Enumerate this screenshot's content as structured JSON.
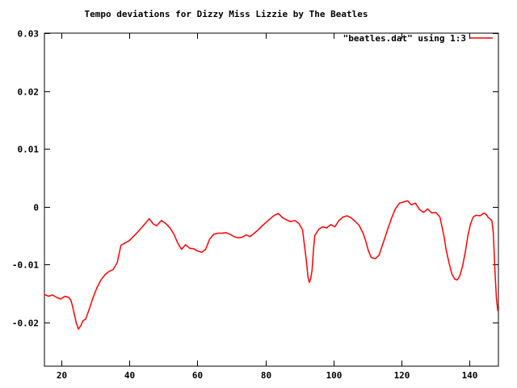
{
  "window": {
    "background": "#ffffff"
  },
  "chart_data": {
    "type": "line",
    "title": "Tempo deviations for Dizzy Miss Lizzie by The Beatles",
    "xlabel": "",
    "ylabel": "",
    "grid": false,
    "legend_position": "top-right-inside",
    "border_color": "#000000",
    "text_color": "#000000",
    "background_color": "#ffffff",
    "xlim": [
      15,
      148.5
    ],
    "ylim": [
      -0.0276,
      0.03
    ],
    "xtick_values": [
      20,
      40,
      60,
      80,
      100,
      120,
      140
    ],
    "xtick_labels": [
      "20",
      "40",
      "60",
      "80",
      "100",
      "120",
      "140"
    ],
    "ytick_values": [
      0.03,
      0.02,
      0.01,
      0,
      -0.01,
      -0.02
    ],
    "ytick_labels": [
      "0.03",
      "0.02",
      "0.01",
      "0",
      "-0.01",
      "-0.02"
    ],
    "series": [
      {
        "name": "\"beatles.dat\" using 1:3",
        "color": "#ff0000",
        "points": [
          [
            15,
            -0.0152
          ],
          [
            16.2,
            -0.0155
          ],
          [
            17.4,
            -0.0153
          ],
          [
            18.6,
            -0.0157
          ],
          [
            19.8,
            -0.016
          ],
          [
            21,
            -0.0155
          ],
          [
            22.1,
            -0.0157
          ],
          [
            22.8,
            -0.0162
          ],
          [
            23.3,
            -0.0173
          ],
          [
            24.3,
            -0.02
          ],
          [
            25,
            -0.0212
          ],
          [
            25.7,
            -0.0206
          ],
          [
            26.4,
            -0.0197
          ],
          [
            27.1,
            -0.0195
          ],
          [
            28.1,
            -0.0179
          ],
          [
            29.2,
            -0.0159
          ],
          [
            30.4,
            -0.0141
          ],
          [
            31.6,
            -0.0127
          ],
          [
            32.8,
            -0.0118
          ],
          [
            34,
            -0.0112
          ],
          [
            35.2,
            -0.0109
          ],
          [
            36.4,
            -0.0097
          ],
          [
            37.5,
            -0.0067
          ],
          [
            39.9,
            -0.0059
          ],
          [
            42.3,
            -0.0045
          ],
          [
            44.7,
            -0.0029
          ],
          [
            45.8,
            -0.0021
          ],
          [
            47,
            -0.003
          ],
          [
            48,
            -0.0033
          ],
          [
            49.4,
            -0.0024
          ],
          [
            50.6,
            -0.0029
          ],
          [
            51.8,
            -0.0036
          ],
          [
            53,
            -0.0047
          ],
          [
            54.2,
            -0.0063
          ],
          [
            55.3,
            -0.0074
          ],
          [
            56.5,
            -0.0066
          ],
          [
            57.7,
            -0.0072
          ],
          [
            58.9,
            -0.0073
          ],
          [
            60.1,
            -0.0077
          ],
          [
            61.3,
            -0.0079
          ],
          [
            62.4,
            -0.0074
          ],
          [
            63.6,
            -0.0056
          ],
          [
            64.8,
            -0.0048
          ],
          [
            66,
            -0.0046
          ],
          [
            67.2,
            -0.0046
          ],
          [
            68.4,
            -0.0045
          ],
          [
            69.6,
            -0.0048
          ],
          [
            70.8,
            -0.0052
          ],
          [
            71.9,
            -0.0054
          ],
          [
            73.1,
            -0.0053
          ],
          [
            74.3,
            -0.0049
          ],
          [
            75.5,
            -0.0052
          ],
          [
            76.7,
            -0.0046
          ],
          [
            77.9,
            -0.004
          ],
          [
            79.1,
            -0.0033
          ],
          [
            80.2,
            -0.0027
          ],
          [
            81.4,
            -0.0021
          ],
          [
            82.6,
            -0.0015
          ],
          [
            83.8,
            -0.0012
          ],
          [
            85,
            -0.0019
          ],
          [
            86.2,
            -0.0023
          ],
          [
            87.4,
            -0.0026
          ],
          [
            88.6,
            -0.0024
          ],
          [
            89.8,
            -0.0029
          ],
          [
            90.9,
            -0.004
          ],
          [
            92,
            -0.0092
          ],
          [
            92.5,
            -0.0122
          ],
          [
            92.9,
            -0.0131
          ],
          [
            93.3,
            -0.0125
          ],
          [
            93.7,
            -0.011
          ],
          [
            94.1,
            -0.0075
          ],
          [
            94.5,
            -0.005
          ],
          [
            95.7,
            -0.0039
          ],
          [
            96.8,
            -0.0035
          ],
          [
            98,
            -0.0037
          ],
          [
            99.2,
            -0.0031
          ],
          [
            100.4,
            -0.0035
          ],
          [
            101.6,
            -0.0024
          ],
          [
            102.8,
            -0.0018
          ],
          [
            104,
            -0.0016
          ],
          [
            105.1,
            -0.0019
          ],
          [
            106.3,
            -0.0025
          ],
          [
            107.5,
            -0.0032
          ],
          [
            108.7,
            -0.0046
          ],
          [
            109.5,
            -0.006
          ],
          [
            110.3,
            -0.0077
          ],
          [
            111.1,
            -0.0088
          ],
          [
            112.3,
            -0.009
          ],
          [
            113.4,
            -0.0084
          ],
          [
            114.6,
            -0.0063
          ],
          [
            115.8,
            -0.0042
          ],
          [
            117,
            -0.0021
          ],
          [
            118.2,
            -0.0004
          ],
          [
            119.4,
            0.0006
          ],
          [
            120.6,
            0.0008
          ],
          [
            121.8,
            0.001
          ],
          [
            122.9,
            0.0003
          ],
          [
            124.1,
            0.0006
          ],
          [
            125.3,
            -0.0005
          ],
          [
            126.5,
            -0.001
          ],
          [
            127.7,
            -0.0004
          ],
          [
            128.9,
            -0.0011
          ],
          [
            130.1,
            -0.001
          ],
          [
            131.3,
            -0.0018
          ],
          [
            132.5,
            -0.0051
          ],
          [
            133.2,
            -0.0077
          ],
          [
            134,
            -0.0098
          ],
          [
            134.8,
            -0.0116
          ],
          [
            135.6,
            -0.0125
          ],
          [
            136.4,
            -0.0127
          ],
          [
            137.2,
            -0.0119
          ],
          [
            138,
            -0.0102
          ],
          [
            138.8,
            -0.0077
          ],
          [
            139.5,
            -0.0051
          ],
          [
            140.3,
            -0.003
          ],
          [
            141.1,
            -0.0018
          ],
          [
            141.9,
            -0.0015
          ],
          [
            143.1,
            -0.0016
          ],
          [
            144.3,
            -0.0011
          ],
          [
            145,
            -0.0014
          ],
          [
            145.4,
            -0.0018
          ],
          [
            146.2,
            -0.0022
          ],
          [
            146.6,
            -0.0025
          ],
          [
            147,
            -0.0046
          ],
          [
            147.4,
            -0.0102
          ],
          [
            147.9,
            -0.0158
          ],
          [
            148.3,
            -0.018
          ],
          [
            148.5,
            -0.0176
          ]
        ]
      }
    ]
  }
}
